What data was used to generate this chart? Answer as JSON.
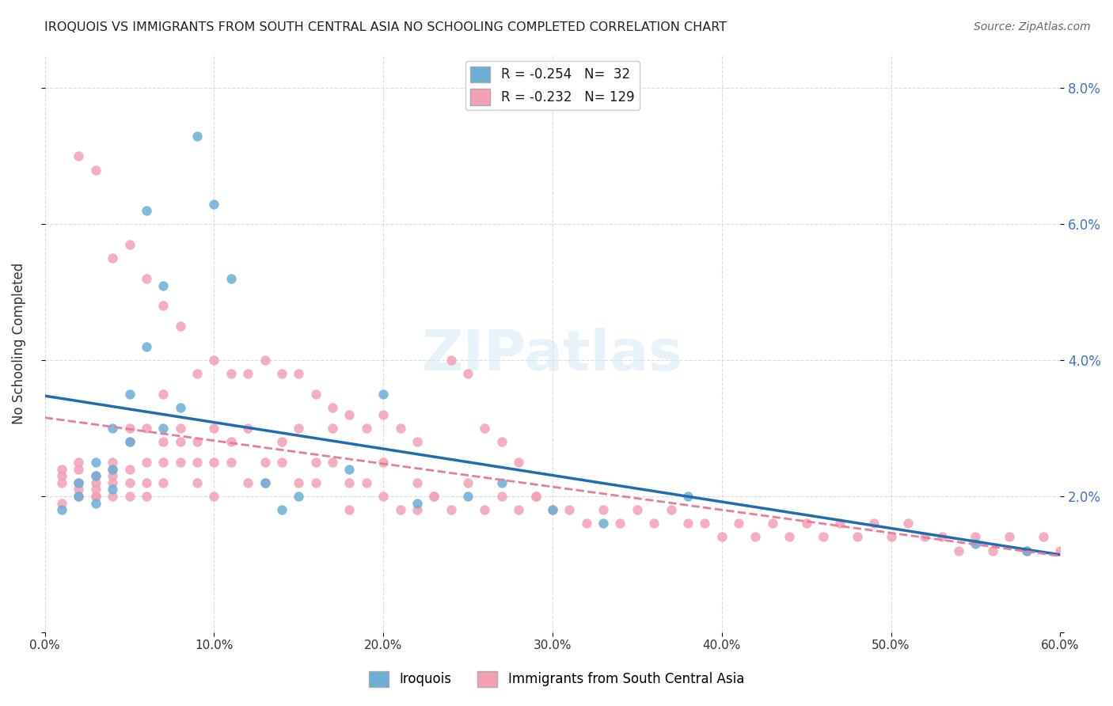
{
  "title": "IROQUOIS VS IMMIGRANTS FROM SOUTH CENTRAL ASIA NO SCHOOLING COMPLETED CORRELATION CHART",
  "source": "Source: ZipAtlas.com",
  "xlabel": "",
  "ylabel": "No Schooling Completed",
  "xlim": [
    0.0,
    0.6
  ],
  "ylim": [
    0.0,
    0.085
  ],
  "xticks": [
    0.0,
    0.1,
    0.2,
    0.3,
    0.4,
    0.5,
    0.6
  ],
  "xticklabels": [
    "0.0%",
    "10.0%",
    "20.0%",
    "30.0%",
    "40.0%",
    "50.0%",
    "60.0%"
  ],
  "yticks_right": [
    0.0,
    0.02,
    0.04,
    0.06,
    0.08
  ],
  "yticklabels_right": [
    "",
    "2.0%",
    "4.0%",
    "6.0%",
    "8.0%"
  ],
  "blue_R": "-0.254",
  "blue_N": "32",
  "pink_R": "-0.232",
  "pink_N": "129",
  "blue_color": "#6aaed6",
  "pink_color": "#f4a0b5",
  "blue_line_color": "#1f6cb0",
  "pink_line_color": "#e87d9a",
  "watermark": "ZIPatlas",
  "legend_label_blue": "Iroquois",
  "legend_label_pink": "Immigrants from South Central Asia",
  "blue_x": [
    0.01,
    0.02,
    0.02,
    0.03,
    0.03,
    0.03,
    0.04,
    0.04,
    0.04,
    0.05,
    0.05,
    0.06,
    0.06,
    0.07,
    0.07,
    0.08,
    0.09,
    0.1,
    0.11,
    0.13,
    0.14,
    0.15,
    0.18,
    0.2,
    0.22,
    0.25,
    0.27,
    0.3,
    0.33,
    0.38,
    0.55,
    0.58
  ],
  "blue_y": [
    0.018,
    0.02,
    0.022,
    0.025,
    0.019,
    0.023,
    0.021,
    0.024,
    0.03,
    0.028,
    0.035,
    0.042,
    0.062,
    0.051,
    0.03,
    0.033,
    0.073,
    0.063,
    0.052,
    0.022,
    0.018,
    0.02,
    0.024,
    0.035,
    0.019,
    0.02,
    0.022,
    0.018,
    0.016,
    0.02,
    0.013,
    0.012
  ],
  "pink_x": [
    0.01,
    0.01,
    0.01,
    0.02,
    0.02,
    0.02,
    0.02,
    0.02,
    0.03,
    0.03,
    0.03,
    0.03,
    0.03,
    0.04,
    0.04,
    0.04,
    0.04,
    0.04,
    0.05,
    0.05,
    0.05,
    0.05,
    0.05,
    0.06,
    0.06,
    0.06,
    0.06,
    0.07,
    0.07,
    0.07,
    0.07,
    0.08,
    0.08,
    0.08,
    0.09,
    0.09,
    0.09,
    0.1,
    0.1,
    0.1,
    0.11,
    0.11,
    0.12,
    0.12,
    0.13,
    0.13,
    0.14,
    0.14,
    0.15,
    0.15,
    0.16,
    0.16,
    0.17,
    0.17,
    0.18,
    0.18,
    0.19,
    0.2,
    0.2,
    0.21,
    0.22,
    0.22,
    0.23,
    0.24,
    0.25,
    0.26,
    0.27,
    0.28,
    0.29,
    0.3,
    0.31,
    0.32,
    0.33,
    0.34,
    0.35,
    0.36,
    0.37,
    0.38,
    0.39,
    0.4,
    0.41,
    0.42,
    0.43,
    0.44,
    0.45,
    0.46,
    0.47,
    0.48,
    0.49,
    0.5,
    0.51,
    0.52,
    0.53,
    0.54,
    0.55,
    0.56,
    0.57,
    0.58,
    0.59,
    0.6,
    0.01,
    0.02,
    0.03,
    0.04,
    0.05,
    0.06,
    0.07,
    0.08,
    0.09,
    0.1,
    0.11,
    0.12,
    0.13,
    0.14,
    0.15,
    0.16,
    0.17,
    0.18,
    0.19,
    0.2,
    0.21,
    0.22,
    0.23,
    0.24,
    0.25,
    0.26,
    0.27,
    0.28,
    0.29
  ],
  "pink_y": [
    0.022,
    0.024,
    0.023,
    0.021,
    0.025,
    0.022,
    0.02,
    0.024,
    0.02,
    0.022,
    0.023,
    0.021,
    0.02,
    0.022,
    0.024,
    0.02,
    0.023,
    0.025,
    0.03,
    0.028,
    0.024,
    0.02,
    0.022,
    0.025,
    0.022,
    0.02,
    0.03,
    0.028,
    0.025,
    0.022,
    0.035,
    0.03,
    0.028,
    0.025,
    0.028,
    0.025,
    0.022,
    0.03,
    0.025,
    0.02,
    0.028,
    0.025,
    0.03,
    0.022,
    0.025,
    0.022,
    0.028,
    0.025,
    0.03,
    0.022,
    0.025,
    0.022,
    0.03,
    0.025,
    0.022,
    0.018,
    0.022,
    0.025,
    0.02,
    0.018,
    0.022,
    0.018,
    0.02,
    0.018,
    0.022,
    0.018,
    0.02,
    0.018,
    0.02,
    0.018,
    0.018,
    0.016,
    0.018,
    0.016,
    0.018,
    0.016,
    0.018,
    0.016,
    0.016,
    0.014,
    0.016,
    0.014,
    0.016,
    0.014,
    0.016,
    0.014,
    0.016,
    0.014,
    0.016,
    0.014,
    0.016,
    0.014,
    0.014,
    0.012,
    0.014,
    0.012,
    0.014,
    0.012,
    0.014,
    0.012,
    0.019,
    0.07,
    0.068,
    0.055,
    0.057,
    0.052,
    0.048,
    0.045,
    0.038,
    0.04,
    0.038,
    0.038,
    0.04,
    0.038,
    0.038,
    0.035,
    0.033,
    0.032,
    0.03,
    0.032,
    0.03,
    0.028,
    0.02,
    0.04,
    0.038,
    0.03,
    0.028,
    0.025,
    0.02
  ]
}
